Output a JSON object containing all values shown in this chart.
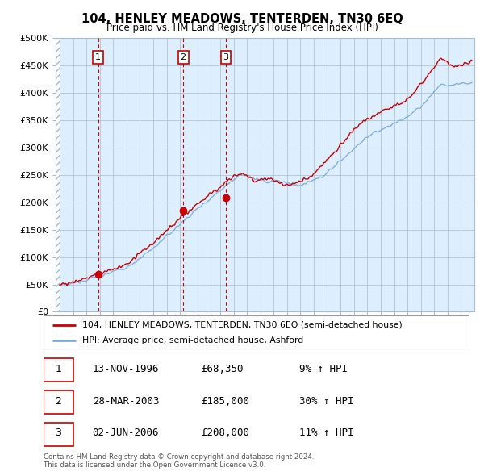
{
  "title": "104, HENLEY MEADOWS, TENTERDEN, TN30 6EQ",
  "subtitle": "Price paid vs. HM Land Registry's House Price Index (HPI)",
  "ylim": [
    0,
    500000
  ],
  "yticks": [
    0,
    50000,
    100000,
    150000,
    200000,
    250000,
    300000,
    350000,
    400000,
    450000,
    500000
  ],
  "ytick_labels": [
    "£0",
    "£50K",
    "£100K",
    "£150K",
    "£200K",
    "£250K",
    "£300K",
    "£350K",
    "£400K",
    "£450K",
    "£500K"
  ],
  "hpi_color": "#7aaadd",
  "price_color": "#cc0000",
  "sale_marker_color": "#cc0000",
  "vline_color": "#cc0000",
  "background_color": "#ddeeff",
  "grid_color": "#aabbcc",
  "sales": [
    {
      "date_num": 1996.87,
      "price": 68350,
      "label": "1"
    },
    {
      "date_num": 2003.24,
      "price": 185000,
      "label": "2"
    },
    {
      "date_num": 2006.42,
      "price": 208000,
      "label": "3"
    }
  ],
  "legend_entries": [
    "104, HENLEY MEADOWS, TENTERDEN, TN30 6EQ (semi-detached house)",
    "HPI: Average price, semi-detached house, Ashford"
  ],
  "table_data": [
    {
      "num": "1",
      "date": "13-NOV-1996",
      "price": "£68,350",
      "hpi": "9% ↑ HPI"
    },
    {
      "num": "2",
      "date": "28-MAR-2003",
      "price": "£185,000",
      "hpi": "30% ↑ HPI"
    },
    {
      "num": "3",
      "date": "02-JUN-2006",
      "price": "£208,000",
      "hpi": "11% ↑ HPI"
    }
  ],
  "footnote": "Contains HM Land Registry data © Crown copyright and database right 2024.\nThis data is licensed under the Open Government Licence v3.0.",
  "xstart": 1993.7,
  "xend": 2025.0
}
